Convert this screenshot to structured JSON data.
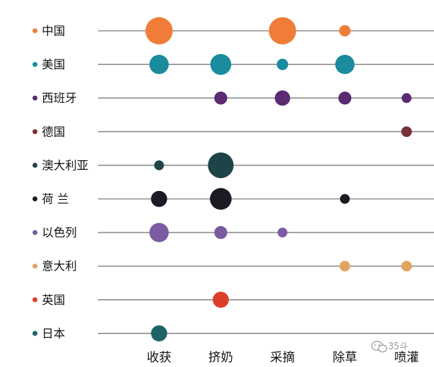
{
  "chart_data": {
    "type": "scatter",
    "categories": [
      "收获",
      "挤奶",
      "采摘",
      "除草",
      "喷灌"
    ],
    "rows": [
      {
        "name": "中国",
        "color": "#F07D37",
        "values": [
          3,
          0,
          3,
          1,
          0
        ]
      },
      {
        "name": "美国",
        "color": "#1A8C9E",
        "values": [
          2,
          2.2,
          1,
          2,
          0
        ]
      },
      {
        "name": "西班牙",
        "color": "#5B2A72",
        "values": [
          0,
          1.2,
          1.5,
          1.2,
          0.8
        ]
      },
      {
        "name": "德国",
        "color": "#7A2F3A",
        "values": [
          0,
          0,
          0,
          0,
          0.9
        ]
      },
      {
        "name": "澳大利亚",
        "color": "#1F4448",
        "values": [
          0.8,
          2.8,
          0,
          0,
          0
        ]
      },
      {
        "name": "荷 兰",
        "color": "#1C1B24",
        "values": [
          1.6,
          2.3,
          0,
          0.8,
          0
        ]
      },
      {
        "name": "以色列",
        "color": "#7B5BA2",
        "values": [
          2,
          1.2,
          0.8,
          0,
          0
        ]
      },
      {
        "name": "意大利",
        "color": "#E0A45E",
        "values": [
          0,
          0,
          0,
          0.9,
          0.9
        ]
      },
      {
        "name": "英国",
        "color": "#DC3E2C",
        "values": [
          0,
          1.6,
          0,
          0,
          0
        ]
      },
      {
        "name": "日本",
        "color": "#1E6466",
        "values": [
          1.6,
          0,
          0,
          0,
          0
        ]
      }
    ],
    "grid": true,
    "legend": "left"
  },
  "watermark": {
    "text": "35斗"
  }
}
